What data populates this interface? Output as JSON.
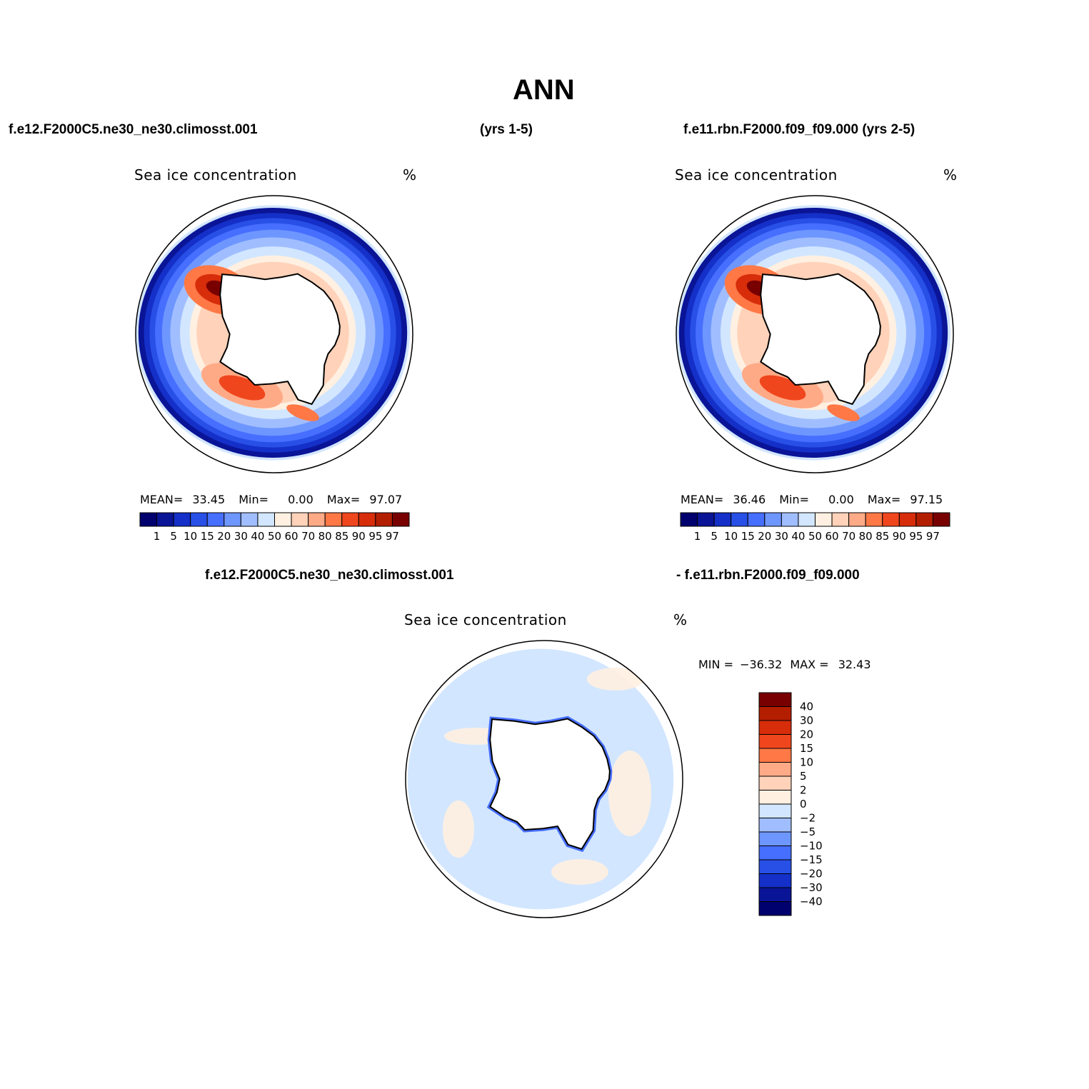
{
  "figure": {
    "title": "ANN",
    "top_left_case": "f.e12.F2000C5.ne30_ne30.climosst.001",
    "top_years": "(yrs 1-5)",
    "top_right_case": "f.e11.rbn.F2000.f09_f09.000 (yrs 2-5)",
    "diff_left_case": "f.e12.F2000C5.ne30_ne30.climosst.001",
    "diff_right_case": "- f.e11.rbn.F2000.f09_f09.000"
  },
  "colors": {
    "levels": [
      "#00006e",
      "#0a1496",
      "#1430c8",
      "#2850e6",
      "#466eff",
      "#6e96ff",
      "#a0beff",
      "#d2e6ff",
      "#fff0e1",
      "#ffd2b9",
      "#ffaa87",
      "#ff7846",
      "#f0461e",
      "#d72d0a",
      "#b41e00",
      "#780000"
    ],
    "land": "#ffffff",
    "coast": "#000000"
  },
  "chart_data": [
    {
      "type": "heatmap",
      "panel": "model",
      "title": "Sea ice concentration",
      "units": "%",
      "stats": {
        "mean_label": "MEAN=",
        "mean": "33.45",
        "min_label": "Min=",
        "min": "0.00",
        "max_label": "Max=",
        "max": "97.07"
      },
      "colorbar_levels": [
        "1",
        "5",
        "10",
        "15",
        "20",
        "30",
        "40",
        "50",
        "60",
        "70",
        "80",
        "85",
        "90",
        "95",
        "97"
      ]
    },
    {
      "type": "heatmap",
      "panel": "control",
      "title": "Sea ice concentration",
      "units": "%",
      "stats": {
        "mean_label": "MEAN=",
        "mean": "36.46",
        "min_label": "Min=",
        "min": "0.00",
        "max_label": "Max=",
        "max": "97.15"
      },
      "colorbar_levels": [
        "1",
        "5",
        "10",
        "15",
        "20",
        "30",
        "40",
        "50",
        "60",
        "70",
        "80",
        "85",
        "90",
        "95",
        "97"
      ]
    },
    {
      "type": "heatmap",
      "panel": "difference",
      "title": "Sea ice concentration",
      "units": "%",
      "stats": {
        "min_label": "MIN =",
        "min": "−36.32",
        "max_label": "MAX =",
        "max": "32.43"
      },
      "colorbar_levels": [
        "40",
        "30",
        "20",
        "15",
        "10",
        "5",
        "2",
        "0",
        "−2",
        "−5",
        "−10",
        "−15",
        "−20",
        "−30",
        "−40"
      ]
    }
  ]
}
